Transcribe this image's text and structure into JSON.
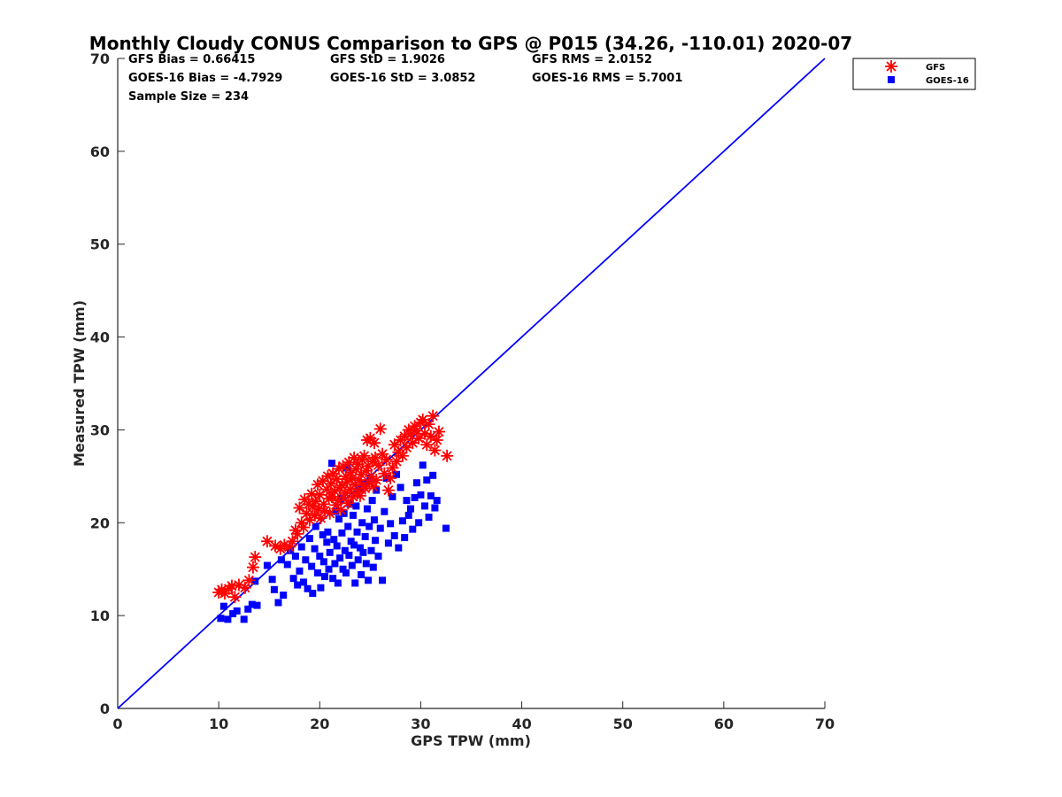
{
  "chart_data": {
    "type": "scatter",
    "title": "Monthly Cloudy CONUS Comparison to GPS @ P015 (34.26, -110.01) 2020-07",
    "xlabel": "GPS TPW (mm)",
    "ylabel": "Measured TPW (mm)",
    "xlim": [
      0,
      70
    ],
    "ylim": [
      0,
      70
    ],
    "xticks": [
      "0",
      "10",
      "20",
      "30",
      "40",
      "50",
      "60",
      "70"
    ],
    "yticks": [
      "0",
      "10",
      "20",
      "30",
      "40",
      "50",
      "60",
      "70"
    ],
    "grid": false,
    "legend_position": "outside-top-right",
    "stats": {
      "gfs_bias": "GFS Bias = 0.66415",
      "gfs_std": "GFS StD = 1.9026",
      "gfs_rms": "GFS RMS = 2.0152",
      "goes_bias": "GOES-16 Bias = -4.7929",
      "goes_std": "GOES-16 StD = 3.0852",
      "goes_rms": "GOES-16 RMS = 5.7001",
      "sample_size": "Sample Size = 234"
    },
    "reference_line": {
      "x": [
        0,
        70
      ],
      "y": [
        0,
        70
      ],
      "color": "#0000ff"
    },
    "series": [
      {
        "name": "GFS",
        "marker": "asterisk",
        "color": "#ff0000",
        "points": [
          [
            10.0,
            12.5
          ],
          [
            10.3,
            12.8
          ],
          [
            10.6,
            12.4
          ],
          [
            11.0,
            12.9
          ],
          [
            11.3,
            13.2
          ],
          [
            11.6,
            12.0
          ],
          [
            12.0,
            13.3
          ],
          [
            12.6,
            13.0
          ],
          [
            13.0,
            13.8
          ],
          [
            13.4,
            15.2
          ],
          [
            13.6,
            16.3
          ],
          [
            14.8,
            18.0
          ],
          [
            15.6,
            17.5
          ],
          [
            16.1,
            17.2
          ],
          [
            16.5,
            17.6
          ],
          [
            17.0,
            17.4
          ],
          [
            17.3,
            18.0
          ],
          [
            17.6,
            19.2
          ],
          [
            17.8,
            18.8
          ],
          [
            18.0,
            21.6
          ],
          [
            18.2,
            20.0
          ],
          [
            18.4,
            19.5
          ],
          [
            18.5,
            22.5
          ],
          [
            18.7,
            21.0
          ],
          [
            18.9,
            22.0
          ],
          [
            19.0,
            20.3
          ],
          [
            19.2,
            23.1
          ],
          [
            19.3,
            21.8
          ],
          [
            19.5,
            20.8
          ],
          [
            19.6,
            22.3
          ],
          [
            19.8,
            24.1
          ],
          [
            19.9,
            21.5
          ],
          [
            20.0,
            23.0
          ],
          [
            20.1,
            20.5
          ],
          [
            20.3,
            24.5
          ],
          [
            20.4,
            22.0
          ],
          [
            20.5,
            21.3
          ],
          [
            20.7,
            23.6
          ],
          [
            20.8,
            25.0
          ],
          [
            20.9,
            22.6
          ],
          [
            21.0,
            21.0
          ],
          [
            21.1,
            24.2
          ],
          [
            21.2,
            22.8
          ],
          [
            21.3,
            25.3
          ],
          [
            21.5,
            23.4
          ],
          [
            21.6,
            21.9
          ],
          [
            21.7,
            24.7
          ],
          [
            21.8,
            22.4
          ],
          [
            21.9,
            25.8
          ],
          [
            22.0,
            23.8
          ],
          [
            22.1,
            21.4
          ],
          [
            22.2,
            24.0
          ],
          [
            22.3,
            26.1
          ],
          [
            22.4,
            22.7
          ],
          [
            22.5,
            23.2
          ],
          [
            22.6,
            25.0
          ],
          [
            22.7,
            24.4
          ],
          [
            22.8,
            22.1
          ],
          [
            22.9,
            26.5
          ],
          [
            23.0,
            23.6
          ],
          [
            23.1,
            25.4
          ],
          [
            23.2,
            24.8
          ],
          [
            23.3,
            22.8
          ],
          [
            23.4,
            27.0
          ],
          [
            23.5,
            24.1
          ],
          [
            23.6,
            25.8
          ],
          [
            23.7,
            23.3
          ],
          [
            23.8,
            26.3
          ],
          [
            23.9,
            24.6
          ],
          [
            24.0,
            22.9
          ],
          [
            24.1,
            25.2
          ],
          [
            24.2,
            26.8
          ],
          [
            24.3,
            24.0
          ],
          [
            24.4,
            27.2
          ],
          [
            24.5,
            23.7
          ],
          [
            24.6,
            25.6
          ],
          [
            24.7,
            28.9
          ],
          [
            24.8,
            26.1
          ],
          [
            24.9,
            24.3
          ],
          [
            25.0,
            29.1
          ],
          [
            25.1,
            25.0
          ],
          [
            25.2,
            26.6
          ],
          [
            25.3,
            23.9
          ],
          [
            25.4,
            28.6
          ],
          [
            25.5,
            27.0
          ],
          [
            25.6,
            24.6
          ],
          [
            25.8,
            26.2
          ],
          [
            26.0,
            30.1
          ],
          [
            26.2,
            27.4
          ],
          [
            26.4,
            25.3
          ],
          [
            26.6,
            26.8
          ],
          [
            26.8,
            23.5
          ],
          [
            27.0,
            24.8
          ],
          [
            27.2,
            25.9
          ],
          [
            27.4,
            28.4
          ],
          [
            27.6,
            26.6
          ],
          [
            27.8,
            27.6
          ],
          [
            28.0,
            28.9
          ],
          [
            28.2,
            27.2
          ],
          [
            28.4,
            29.3
          ],
          [
            28.6,
            28.1
          ],
          [
            28.8,
            30.0
          ],
          [
            29.0,
            29.5
          ],
          [
            29.2,
            28.6
          ],
          [
            29.4,
            30.4
          ],
          [
            29.6,
            29.9
          ],
          [
            29.8,
            29.1
          ],
          [
            30.0,
            30.8
          ],
          [
            30.2,
            31.1
          ],
          [
            30.4,
            29.6
          ],
          [
            30.6,
            28.4
          ],
          [
            30.8,
            30.6
          ],
          [
            31.0,
            29.3
          ],
          [
            31.2,
            31.5
          ],
          [
            31.4,
            27.8
          ],
          [
            31.6,
            28.9
          ],
          [
            31.8,
            29.8
          ],
          [
            32.6,
            27.2
          ]
        ]
      },
      {
        "name": "GOES-16",
        "marker": "square",
        "color": "#0000ff",
        "points": [
          [
            10.2,
            9.7
          ],
          [
            10.5,
            11.0
          ],
          [
            10.9,
            9.6
          ],
          [
            11.4,
            10.2
          ],
          [
            11.8,
            10.5
          ],
          [
            12.5,
            9.6
          ],
          [
            12.9,
            10.7
          ],
          [
            13.3,
            11.2
          ],
          [
            13.6,
            13.7
          ],
          [
            13.8,
            11.1
          ],
          [
            14.8,
            15.4
          ],
          [
            15.3,
            13.9
          ],
          [
            15.5,
            12.8
          ],
          [
            15.9,
            11.4
          ],
          [
            16.2,
            16.0
          ],
          [
            16.4,
            12.2
          ],
          [
            16.8,
            15.5
          ],
          [
            17.1,
            17.0
          ],
          [
            17.4,
            14.0
          ],
          [
            17.6,
            16.4
          ],
          [
            17.8,
            13.3
          ],
          [
            18.0,
            14.8
          ],
          [
            18.2,
            17.4
          ],
          [
            18.4,
            13.6
          ],
          [
            18.6,
            16.0
          ],
          [
            18.8,
            12.9
          ],
          [
            19.0,
            18.3
          ],
          [
            19.2,
            15.3
          ],
          [
            19.3,
            12.4
          ],
          [
            19.5,
            17.2
          ],
          [
            19.6,
            19.6
          ],
          [
            19.8,
            14.6
          ],
          [
            20.0,
            16.4
          ],
          [
            20.1,
            13.0
          ],
          [
            20.3,
            18.7
          ],
          [
            20.4,
            15.8
          ],
          [
            20.5,
            14.2
          ],
          [
            20.7,
            17.9
          ],
          [
            20.8,
            19.0
          ],
          [
            20.9,
            15.0
          ],
          [
            21.0,
            16.8
          ],
          [
            21.2,
            26.4
          ],
          [
            21.3,
            14.0
          ],
          [
            21.4,
            18.2
          ],
          [
            21.5,
            15.6
          ],
          [
            21.6,
            21.2
          ],
          [
            21.7,
            17.5
          ],
          [
            21.8,
            13.5
          ],
          [
            21.9,
            20.4
          ],
          [
            22.0,
            16.2
          ],
          [
            22.1,
            22.6
          ],
          [
            22.2,
            18.9
          ],
          [
            22.3,
            15.0
          ],
          [
            22.4,
            21.0
          ],
          [
            22.5,
            17.0
          ],
          [
            22.6,
            14.6
          ],
          [
            22.7,
            25.9
          ],
          [
            22.8,
            19.6
          ],
          [
            22.9,
            16.5
          ],
          [
            23.0,
            22.0
          ],
          [
            23.1,
            18.0
          ],
          [
            23.2,
            15.4
          ],
          [
            23.3,
            20.8
          ],
          [
            23.4,
            17.6
          ],
          [
            23.5,
            13.5
          ],
          [
            23.6,
            21.8
          ],
          [
            23.7,
            19.0
          ],
          [
            23.8,
            16.0
          ],
          [
            23.9,
            23.6
          ],
          [
            24.0,
            17.3
          ],
          [
            24.1,
            14.4
          ],
          [
            24.2,
            20.0
          ],
          [
            24.3,
            16.8
          ],
          [
            24.4,
            24.2
          ],
          [
            24.5,
            18.5
          ],
          [
            24.6,
            15.6
          ],
          [
            24.7,
            21.5
          ],
          [
            24.8,
            13.8
          ],
          [
            24.9,
            19.6
          ],
          [
            25.0,
            24.8
          ],
          [
            25.1,
            17.0
          ],
          [
            25.2,
            22.4
          ],
          [
            25.3,
            15.2
          ],
          [
            25.4,
            20.3
          ],
          [
            25.5,
            18.1
          ],
          [
            25.6,
            23.5
          ],
          [
            25.8,
            16.4
          ],
          [
            26.0,
            19.4
          ],
          [
            26.2,
            13.8
          ],
          [
            26.4,
            21.2
          ],
          [
            26.6,
            24.8
          ],
          [
            26.8,
            17.8
          ],
          [
            27.0,
            19.9
          ],
          [
            27.2,
            22.8
          ],
          [
            27.4,
            18.6
          ],
          [
            27.6,
            25.2
          ],
          [
            27.8,
            17.3
          ],
          [
            28.0,
            23.8
          ],
          [
            28.2,
            20.2
          ],
          [
            28.4,
            18.4
          ],
          [
            28.6,
            22.4
          ],
          [
            28.8,
            20.8
          ],
          [
            29.0,
            21.5
          ],
          [
            29.2,
            19.3
          ],
          [
            29.4,
            22.7
          ],
          [
            29.6,
            24.3
          ],
          [
            29.8,
            20.0
          ],
          [
            30.0,
            23.0
          ],
          [
            30.2,
            26.2
          ],
          [
            30.4,
            21.8
          ],
          [
            30.6,
            24.6
          ],
          [
            30.8,
            20.6
          ],
          [
            31.0,
            22.9
          ],
          [
            31.2,
            25.1
          ],
          [
            31.4,
            21.6
          ],
          [
            31.6,
            22.4
          ],
          [
            32.5,
            19.4
          ]
        ]
      }
    ]
  }
}
